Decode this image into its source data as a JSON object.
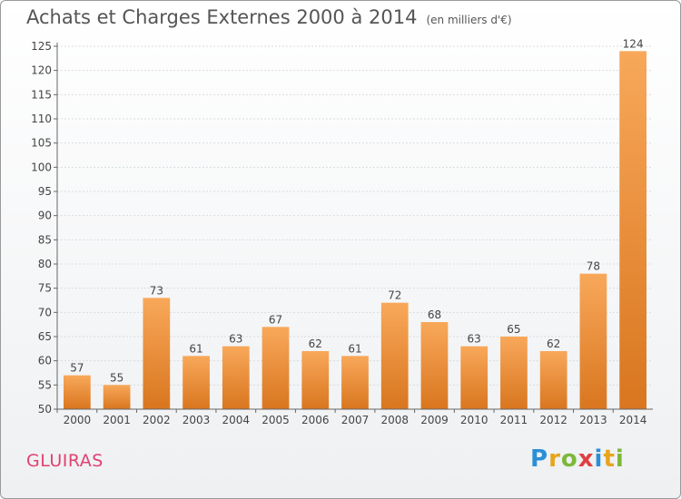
{
  "chart_data": {
    "type": "bar",
    "title": "Achats et Charges Externes 2000 à 2014",
    "subtitle": "(en milliers d'€)",
    "categories": [
      "2000",
      "2001",
      "2002",
      "2003",
      "2004",
      "2005",
      "2006",
      "2007",
      "2008",
      "2009",
      "2010",
      "2011",
      "2012",
      "2013",
      "2014"
    ],
    "values": [
      57,
      55,
      73,
      61,
      63,
      67,
      62,
      61,
      72,
      68,
      63,
      65,
      62,
      78,
      124
    ],
    "ylim": [
      50,
      125
    ],
    "yticks": [
      50,
      55,
      60,
      65,
      70,
      75,
      80,
      85,
      90,
      95,
      100,
      105,
      110,
      115,
      120,
      125
    ],
    "grid": true,
    "bar_color": "#f39c45",
    "legend": "none"
  },
  "place": "GLUIRAS",
  "logo": {
    "text": "Proxiti",
    "colors": [
      "#2a8fd6",
      "#e6a51e",
      "#7cb83a",
      "#e04040",
      "#2a8fd6",
      "#e6a51e",
      "#7cb83a"
    ]
  }
}
